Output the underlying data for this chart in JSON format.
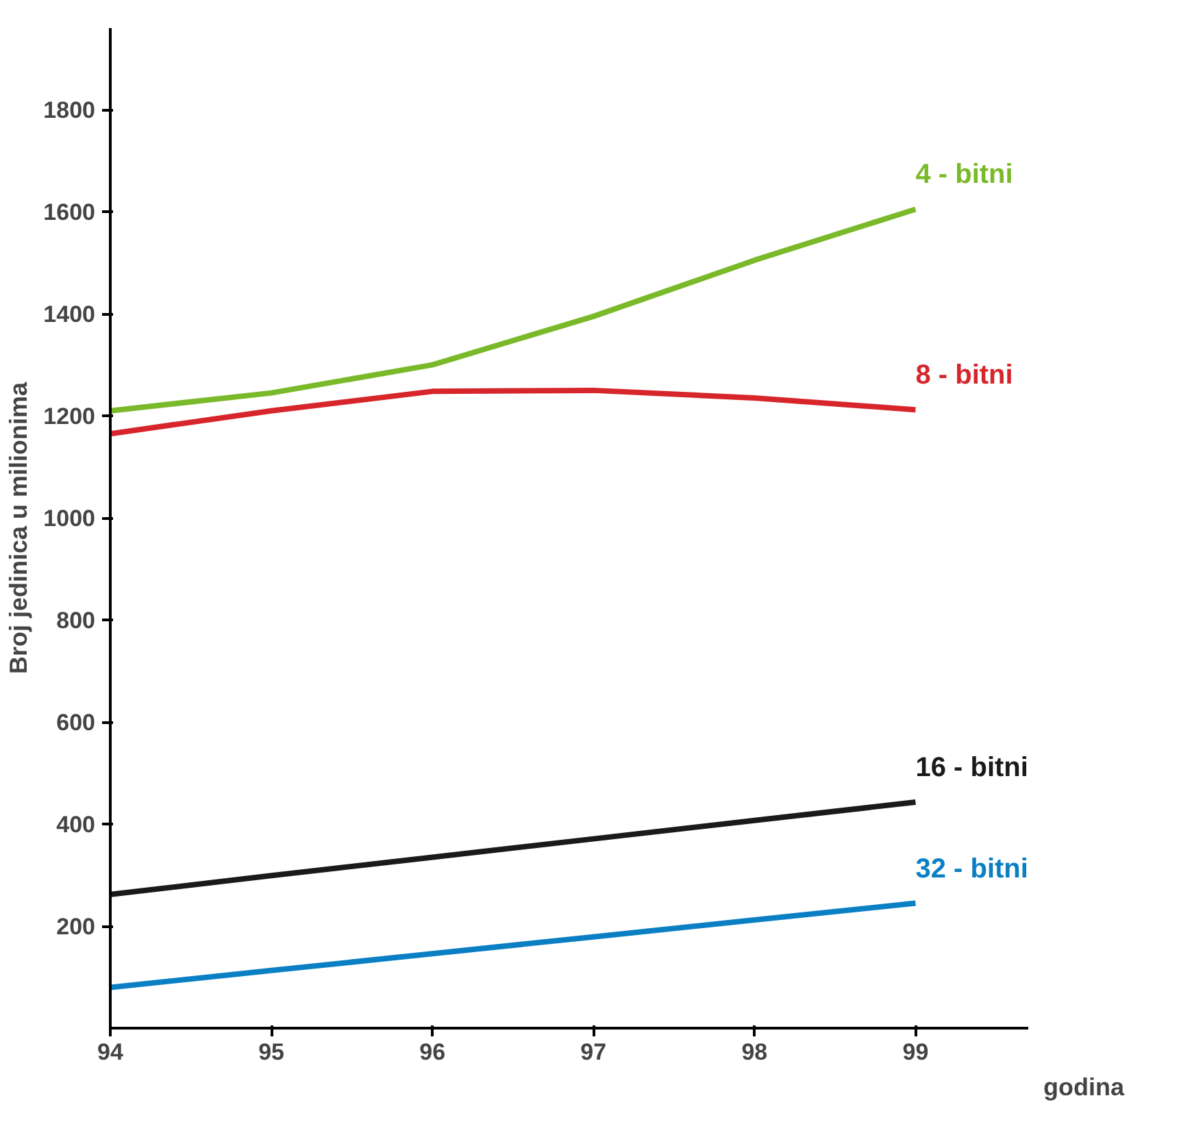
{
  "chart_data": {
    "type": "line",
    "xlabel": "godina",
    "ylabel": "Broj jedinica u milionima",
    "x": [
      94,
      95,
      96,
      97,
      98,
      99
    ],
    "series": [
      {
        "name": "4 - bitni",
        "color": "#7ab929",
        "values": [
          1210,
          1245,
          1300,
          1395,
          1505,
          1605
        ]
      },
      {
        "name": "8 - bitni",
        "color": "#d7262b",
        "values": [
          1165,
          1210,
          1248,
          1250,
          1235,
          1212
        ]
      },
      {
        "name": "16 - bitni",
        "color": "#1a1a1a",
        "values": [
          262,
          299,
          335,
          371,
          407,
          443
        ]
      },
      {
        "name": "32 - bitni",
        "color": "#0a7fc4",
        "values": [
          80,
          113,
          146,
          179,
          212,
          245
        ]
      }
    ],
    "xlim": [
      94,
      99.7
    ],
    "ylim": [
      0,
      1960
    ],
    "xticks": [
      94,
      95,
      96,
      97,
      98,
      99
    ],
    "yticks": [
      200,
      400,
      600,
      800,
      1000,
      1200,
      1400,
      1600,
      1800
    ],
    "grid": false,
    "marker": "none",
    "line_style": "solid"
  }
}
